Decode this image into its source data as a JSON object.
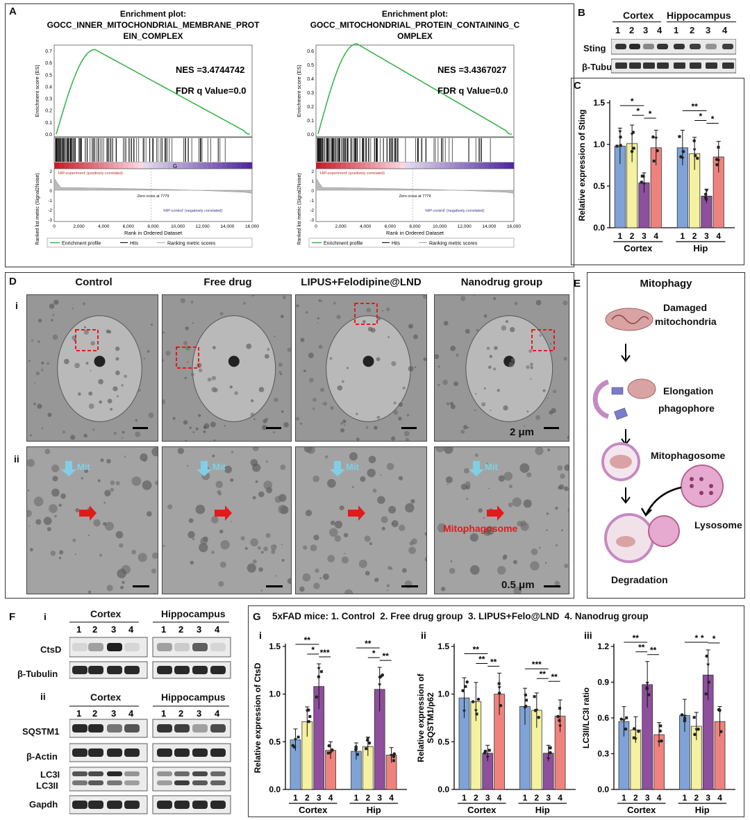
{
  "panels": {
    "A": "A",
    "B": "B",
    "C": "C",
    "D": "D",
    "E": "E",
    "F": "F",
    "G": "G"
  },
  "gsea": [
    {
      "title_line1": "Enrichment plot:",
      "title_line2": "GOCC_INNER_MITOCHONDRIAL_MEMBRANE_PROT",
      "title_line3": "EIN_COMPLEX",
      "nes": "NES =3.4744742",
      "fdr": "FDR q Value=0.0",
      "es_max": 0.7,
      "es_ticks": [
        "0.7",
        "0.6",
        "0.5",
        "0.4",
        "0.3",
        "0.2",
        "0.1",
        "0.0"
      ],
      "es_peak": 0.71,
      "g_mark": "G"
    },
    {
      "title_line1": "Enrichment plot:",
      "title_line2": "GOCC_MITOCHONDRIAL_PROTEIN_CONTAINING_C",
      "title_line3": "OMPLEX",
      "nes": "NES =3.4367027",
      "fdr": "FDR q Value=0.0",
      "es_max": 0.6,
      "es_ticks": [
        "0.6",
        "0.5",
        "0.4",
        "0.3",
        "0.2",
        "0.1",
        "0.0"
      ],
      "es_peak": 0.65,
      "g_mark": ""
    }
  ],
  "gsea_common": {
    "es_ylabel": "Enrichment score (ES)",
    "rank_ylabel": "Ranked list metric (Signal2Noise)",
    "xlabel": "Rank in Ordered Dataset",
    "xticks": [
      "0",
      "2,000",
      "4,000",
      "6,000",
      "8,000",
      "10,000",
      "12,000",
      "14,000",
      "16,000"
    ],
    "rank_yticks": [
      "2",
      "1",
      "0",
      "-1",
      "-2",
      "-3"
    ],
    "pos_label": "'HIP-experiment' (positively correlated)",
    "neg_label": "'HIP-control' (negatively correlated)",
    "zero_cross": "Zero cross at 7779",
    "legend": [
      "Enrichment profile",
      "Hits",
      "Ranking metric scores"
    ]
  },
  "blotB": {
    "groups": [
      "Cortex",
      "Hippocampus"
    ],
    "lanes": [
      "1",
      "2",
      "3",
      "4",
      "1",
      "2",
      "3",
      "4"
    ],
    "rows": [
      "Sting",
      "β-Tubulin"
    ]
  },
  "chartC": {
    "ylabel": "Relative expression of Sting",
    "yticks": [
      "1.5",
      "1.0",
      "0.5",
      "0.0"
    ],
    "lanes": [
      "1",
      "2",
      "3",
      "4"
    ],
    "groups": [
      "Cortex",
      "Hip"
    ],
    "sig": [
      "*",
      "*",
      "*",
      "**",
      "*",
      "*"
    ]
  },
  "chart_data": [
    {
      "type": "bar",
      "title": "Relative expression of Sting",
      "ylabel": "Relative expression of Sting",
      "categories": [
        "Cortex",
        "Hip"
      ],
      "series": [
        {
          "name": "Control",
          "values": [
            0.98,
            0.96
          ]
        },
        {
          "name": "Free drug",
          "values": [
            1.01,
            0.89
          ]
        },
        {
          "name": "LIPUS+Felo@LND",
          "values": [
            0.54,
            0.38
          ]
        },
        {
          "name": "Nanodrug",
          "values": [
            0.96,
            0.85
          ]
        }
      ],
      "ylim": [
        0,
        1.5
      ]
    },
    {
      "type": "bar",
      "title": "Relative expression of CtsD",
      "ylabel": "Relative expression of CtsD",
      "categories": [
        "Cortex",
        "Hip"
      ],
      "series": [
        {
          "name": "Control",
          "values": [
            0.52,
            0.4
          ]
        },
        {
          "name": "Free drug",
          "values": [
            0.71,
            0.45
          ]
        },
        {
          "name": "LIPUS+Felo@LND",
          "values": [
            1.08,
            1.05
          ]
        },
        {
          "name": "Nanodrug",
          "values": [
            0.41,
            0.36
          ]
        }
      ],
      "ylim": [
        0,
        1.5
      ]
    },
    {
      "type": "bar",
      "title": "Relative expression of SQSTM1/p62",
      "ylabel": "Relative expression of SQSTM1/p62",
      "categories": [
        "Cortex",
        "Hip"
      ],
      "series": [
        {
          "name": "Control",
          "values": [
            0.96,
            0.87
          ]
        },
        {
          "name": "Free drug",
          "values": [
            0.92,
            0.83
          ]
        },
        {
          "name": "LIPUS+Felo@LND",
          "values": [
            0.38,
            0.38
          ]
        },
        {
          "name": "Nanodrug",
          "values": [
            1.0,
            0.77
          ]
        }
      ],
      "ylim": [
        0,
        1.5
      ]
    },
    {
      "type": "bar",
      "title": "LC3II/LC3I ratio",
      "ylabel": "LC3II/LC3I ratio",
      "categories": [
        "Cortex",
        "Hip"
      ],
      "series": [
        {
          "name": "Control",
          "values": [
            0.57,
            0.62
          ]
        },
        {
          "name": "Free drug",
          "values": [
            0.5,
            0.53
          ]
        },
        {
          "name": "LIPUS+Felo@LND",
          "values": [
            0.88,
            0.96
          ]
        },
        {
          "name": "Nanodrug",
          "values": [
            0.46,
            0.57
          ]
        }
      ],
      "ylim": [
        0,
        1.2
      ]
    }
  ],
  "colors": {
    "c1": "#7fa3d6",
    "c2": "#f4f1a0",
    "c3": "#8e4f9c",
    "c4": "#f0827e",
    "green": "#3ab54a"
  },
  "tem": {
    "headers": [
      "Control",
      "Free drug",
      "LIPUS+Felodipine@LND",
      "Nanodrug group"
    ],
    "row_i": "i",
    "row_ii": "ii",
    "scale1": "2 μm",
    "scale2": "0.5 μm",
    "mit": "Mit",
    "mitophagosome": "Mitophagosome"
  },
  "mitophagy": {
    "title": "Mitophagy",
    "damaged_line1": "Damaged",
    "damaged_line2": "mitochondria",
    "elong_line1": "Elongation",
    "elong_line2": "phagophore",
    "mitophagosome": "Mitophagosome",
    "lysosome": "Lysosome",
    "degradation": "Degradation"
  },
  "blotF": {
    "i": "i",
    "ii": "ii",
    "groups": [
      "Cortex",
      "Hippocampus"
    ],
    "lanes": [
      "1",
      "2",
      "3",
      "4",
      "1",
      "2",
      "3",
      "4"
    ],
    "rows_i": [
      "CtsD",
      "β-Tubulin"
    ],
    "rows_ii": [
      "SQSTM1",
      "β-Actin",
      "LC3I",
      "LC3II",
      "Gapdh"
    ]
  },
  "gpanel": {
    "header": "5xFAD mice: 1. Control  2. Free drug group  3. LIPUS+Felo@LND  4. Nanodrug group",
    "sub": [
      "i",
      "ii",
      "iii"
    ],
    "yl1": "Relative expression of CtsD",
    "yl2a": "Relative expression of",
    "yl2b": "SQSTM1/p62",
    "yl3": "LC3II/LC3I ratio",
    "yticks15": [
      "1.5",
      "1.0",
      "0.5",
      "0.0"
    ],
    "yticks12": [
      "1.2",
      "0.9",
      "0.6",
      "0.3",
      "0.0"
    ],
    "lanes": [
      "1",
      "2",
      "3",
      "4"
    ],
    "groups": [
      "Cortex",
      "Hip"
    ],
    "sig_i": [
      "**",
      "*",
      "***",
      "**",
      "*",
      "**"
    ],
    "sig_ii": [
      "**",
      "**",
      "**",
      "***",
      "**",
      "**"
    ],
    "sig_iii": [
      "**",
      "**",
      "**",
      "*",
      "*",
      "*"
    ]
  }
}
